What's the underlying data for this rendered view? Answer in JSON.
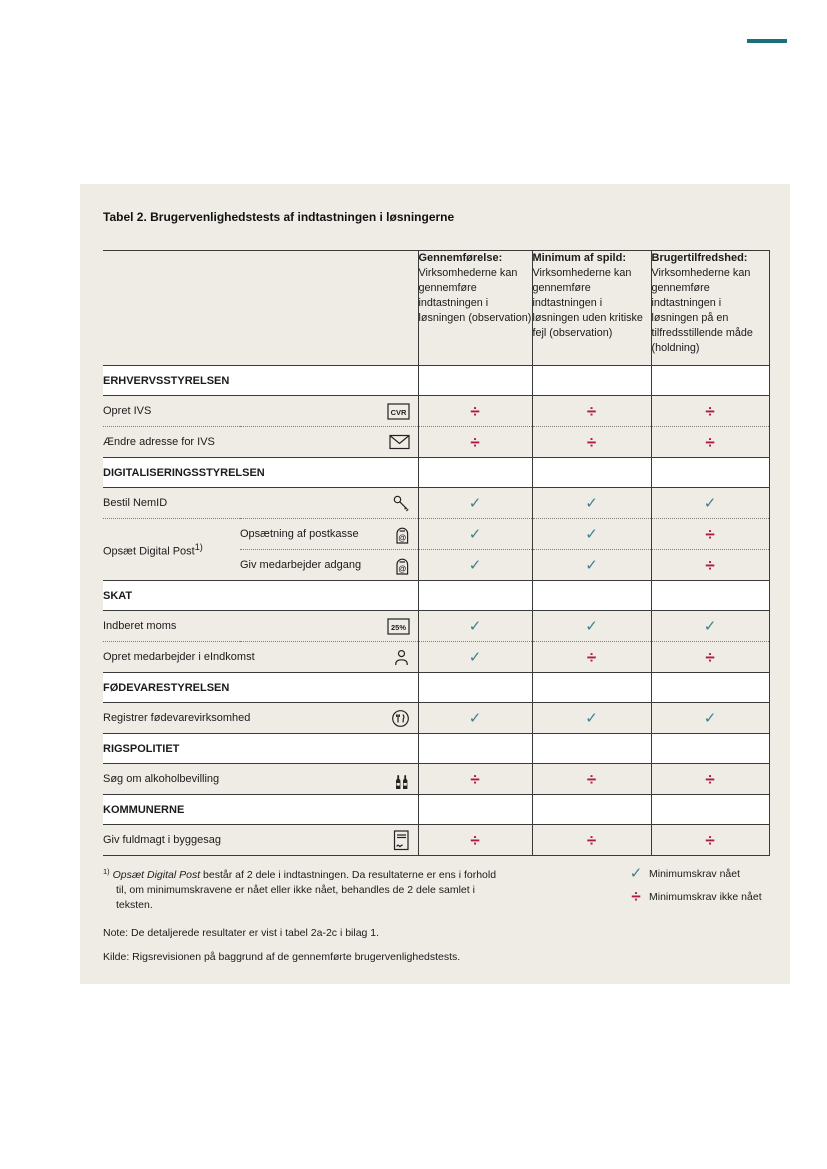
{
  "colors": {
    "accent_teal": "#1b6e7b",
    "check_teal": "#3e7f8e",
    "notmet_red": "#b01a3e"
  },
  "symbols": {
    "yes": "✓",
    "no": "÷"
  },
  "table": {
    "title": "Tabel 2. Brugervenlighedstests af indtastningen i løsningerne",
    "columns": [
      {
        "title": "Gennemførelse:",
        "desc": "Virksomhederne kan gennemføre indtastningen i løsningen (observation)"
      },
      {
        "title": "Minimum af spild:",
        "desc": "Virksomhederne kan gennemføre indtastningen i løsningen uden kritiske fejl (observation)"
      },
      {
        "title": "Brugertilfredshed:",
        "desc": "Virksomhederne kan gennemføre indtastningen i løsningen på en tilfredsstillende måde (holdning)"
      }
    ],
    "sections": [
      {
        "name": "ERHVERVSSTYRELSEN",
        "rows": [
          {
            "label": "Opret IVS",
            "icon": "cvr",
            "results": [
              "no",
              "no",
              "no"
            ]
          },
          {
            "label": "Ændre adresse for IVS",
            "icon": "envelope",
            "results": [
              "no",
              "no",
              "no"
            ]
          }
        ]
      },
      {
        "name": "DIGITALISERINGSSTYRELSEN",
        "rows": [
          {
            "label": "Bestil NemID",
            "icon": "key",
            "results": [
              "yes",
              "yes",
              "yes"
            ]
          },
          {
            "label": "Opsæt Digital Post",
            "sup": "1)",
            "sub": "Opsætning af postkasse",
            "icon": "mailbox",
            "results": [
              "yes",
              "yes",
              "no"
            ]
          },
          {
            "sub": "Giv medarbejder adgang",
            "icon": "mailbox",
            "results": [
              "yes",
              "yes",
              "no"
            ]
          }
        ]
      },
      {
        "name": "SKAT",
        "rows": [
          {
            "label": "Indberet moms",
            "icon": "vat",
            "results": [
              "yes",
              "yes",
              "yes"
            ]
          },
          {
            "label": "Opret medarbejder i eIndkomst",
            "icon": "person",
            "results": [
              "yes",
              "no",
              "no"
            ]
          }
        ]
      },
      {
        "name": "FØDEVARESTYRELSEN",
        "rows": [
          {
            "label": "Registrer fødevarevirksomhed",
            "icon": "food",
            "results": [
              "yes",
              "yes",
              "yes"
            ]
          }
        ]
      },
      {
        "name": "RIGSPOLITIET",
        "rows": [
          {
            "label": "Søg om alkoholbevilling",
            "icon": "bottles",
            "results": [
              "no",
              "no",
              "no"
            ]
          }
        ]
      },
      {
        "name": "KOMMUNERNE",
        "rows": [
          {
            "label": "Giv fuldmagt i byggesag",
            "icon": "document",
            "results": [
              "no",
              "no",
              "no"
            ]
          }
        ]
      }
    ]
  },
  "legend": {
    "items": [
      {
        "symbol": "yes",
        "label": "Minimumskrav nået"
      },
      {
        "symbol": "no",
        "label": "Minimumskrav ikke nået"
      }
    ]
  },
  "footnote": {
    "marker": "1)",
    "lead": "Opsæt Digital Post",
    "rest": " består af 2 dele i indtastningen. Da resultaterne er ens i forhold til, om minimumskravene er nået eller ikke nået, behandles de 2 dele samlet i teksten."
  },
  "note": "Note: De detaljerede resultater er vist i tabel 2a-2c i bilag 1.",
  "source": "Kilde: Rigsrevisionen på baggrund af de gennemførte brugervenlighedstests."
}
